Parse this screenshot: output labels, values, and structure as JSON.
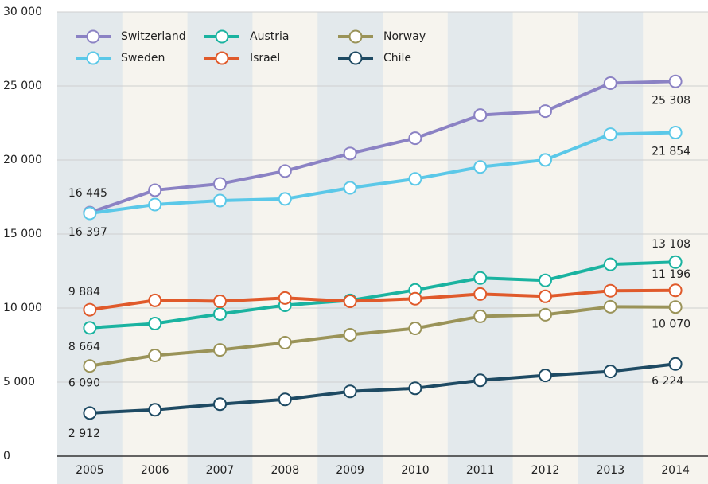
{
  "chart_data": {
    "type": "line",
    "x": [
      "2005",
      "2006",
      "2007",
      "2008",
      "2009",
      "2010",
      "2011",
      "2012",
      "2013",
      "2014"
    ],
    "ylim": [
      0,
      30000
    ],
    "yticks": [
      0,
      {
        "value": 5000,
        "label": "5 000"
      },
      {
        "value": 10000,
        "label": "10 000"
      },
      {
        "value": 15000,
        "label": "15 000"
      },
      {
        "value": 20000,
        "label": "20 000"
      },
      {
        "value": 25000,
        "label": "25 000"
      },
      {
        "value": 30000,
        "label": "30 000"
      }
    ],
    "grid": true,
    "legend": "top-left",
    "series": [
      {
        "name": "Switzerland",
        "color": "#8b82c4",
        "values": [
          16445,
          17960,
          18390,
          19255,
          20440,
          21470,
          23030,
          23300,
          25190,
          25308
        ],
        "value_labels": [
          "16 445",
          null,
          null,
          null,
          null,
          null,
          null,
          null,
          null,
          "25 308"
        ]
      },
      {
        "name": "Sweden",
        "color": "#5bc8e8",
        "values": [
          16397,
          16990,
          17260,
          17370,
          18120,
          18720,
          19530,
          20010,
          21740,
          21854
        ],
        "value_labels": [
          "16 397",
          null,
          null,
          null,
          null,
          null,
          null,
          null,
          null,
          "21 854"
        ]
      },
      {
        "name": "Austria",
        "color": "#1ab3a0",
        "values": [
          8664,
          8950,
          9600,
          10190,
          10520,
          11220,
          12030,
          11870,
          12950,
          13108
        ],
        "value_labels": [
          "8 664",
          null,
          null,
          null,
          null,
          null,
          null,
          null,
          null,
          "13 108"
        ]
      },
      {
        "name": "Israel",
        "color": "#e05a2b",
        "values": [
          9884,
          10520,
          10460,
          10680,
          10460,
          10630,
          10950,
          10790,
          11170,
          11196
        ],
        "value_labels": [
          "9 884",
          null,
          null,
          null,
          null,
          null,
          null,
          null,
          null,
          "11 196"
        ]
      },
      {
        "name": "Norway",
        "color": "#9a9358",
        "values": [
          6090,
          6800,
          7170,
          7660,
          8200,
          8630,
          9440,
          9550,
          10090,
          10070
        ],
        "value_labels": [
          "6 090",
          null,
          null,
          null,
          null,
          null,
          null,
          null,
          null,
          "10 070"
        ]
      },
      {
        "name": "Chile",
        "color": "#1e4a63",
        "values": [
          2912,
          3130,
          3510,
          3830,
          4370,
          4580,
          5120,
          5450,
          5720,
          6224
        ],
        "value_labels": [
          "2 912",
          null,
          null,
          null,
          null,
          null,
          null,
          null,
          null,
          "6 224"
        ]
      }
    ]
  }
}
